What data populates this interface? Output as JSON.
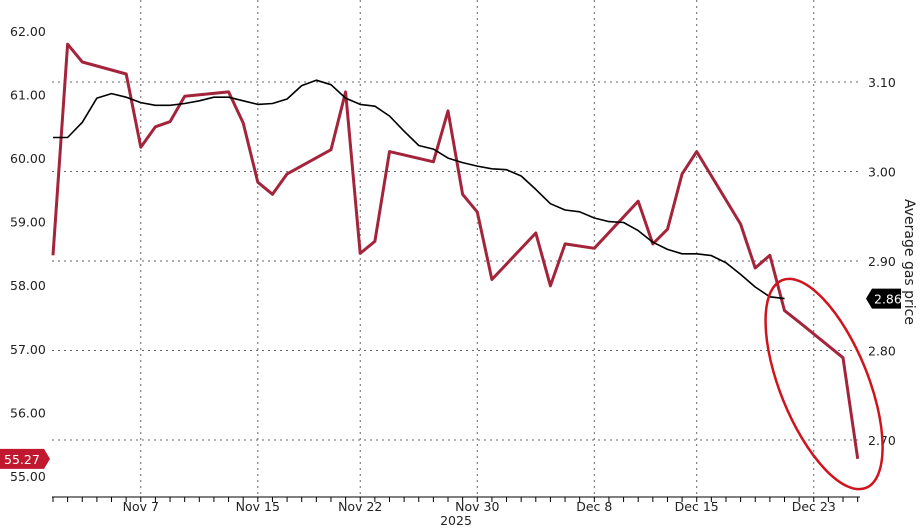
{
  "chart_data": {
    "type": "line",
    "title": "",
    "xlabel": "2025",
    "x_tick_labels": [
      "Nov 7",
      "Nov 15",
      "Nov 22",
      "Nov 30",
      "Dec 8",
      "Dec 15",
      "Dec 23"
    ],
    "x_tick_dates": [
      "2025-11-07",
      "2025-11-15",
      "2025-11-22",
      "2025-11-30",
      "2025-12-08",
      "2025-12-15",
      "2025-12-23"
    ],
    "xlim": [
      "2025-11-01",
      "2025-12-26"
    ],
    "left_axis": {
      "label": "",
      "ylim": [
        55,
        62
      ],
      "ticks": [
        "55.00",
        "56.00",
        "57.00",
        "58.00",
        "59.00",
        "60.00",
        "61.00",
        "62.00"
      ]
    },
    "right_axis": {
      "label": "Average gas price",
      "ylim": [
        2.65,
        3.15
      ],
      "ticks": [
        "2.70",
        "2.80",
        "2.90",
        "3.00",
        "3.10"
      ]
    },
    "grid": true,
    "series": [
      {
        "axis": "left",
        "color": "#a3243b",
        "last_value_label": "55.27",
        "points": [
          [
            "2025-11-01",
            58.47
          ],
          [
            "2025-11-02",
            61.79
          ],
          [
            "2025-11-03",
            61.51
          ],
          [
            "2025-11-06",
            61.32
          ],
          [
            "2025-11-07",
            60.17
          ],
          [
            "2025-11-08",
            60.49
          ],
          [
            "2025-11-09",
            60.57
          ],
          [
            "2025-11-10",
            60.97
          ],
          [
            "2025-11-13",
            61.04
          ],
          [
            "2025-11-14",
            60.55
          ],
          [
            "2025-11-15",
            59.62
          ],
          [
            "2025-11-16",
            59.43
          ],
          [
            "2025-11-17",
            59.75
          ],
          [
            "2025-11-20",
            60.13
          ],
          [
            "2025-11-21",
            61.04
          ],
          [
            "2025-11-22",
            58.5
          ],
          [
            "2025-11-23",
            58.69
          ],
          [
            "2025-11-24",
            60.1
          ],
          [
            "2025-11-27",
            59.94
          ],
          [
            "2025-11-28",
            60.74
          ],
          [
            "2025-11-29",
            59.43
          ],
          [
            "2025-11-30",
            59.15
          ],
          [
            "2025-12-01",
            58.09
          ],
          [
            "2025-12-04",
            58.82
          ],
          [
            "2025-12-05",
            57.99
          ],
          [
            "2025-12-06",
            58.65
          ],
          [
            "2025-12-08",
            58.58
          ],
          [
            "2025-12-11",
            59.32
          ],
          [
            "2025-12-12",
            58.65
          ],
          [
            "2025-12-13",
            58.88
          ],
          [
            "2025-12-14",
            59.75
          ],
          [
            "2025-12-15",
            60.1
          ],
          [
            "2025-12-18",
            58.96
          ],
          [
            "2025-12-19",
            58.27
          ],
          [
            "2025-12-20",
            58.47
          ],
          [
            "2025-12-21",
            57.6
          ],
          [
            "2025-12-22",
            57.42
          ],
          [
            "2025-12-25",
            56.86
          ],
          [
            "2025-12-26",
            55.27
          ]
        ]
      },
      {
        "axis": "right",
        "color": "#000000",
        "last_value_label": "2.86",
        "points": [
          [
            "2025-11-01",
            3.038
          ],
          [
            "2025-11-02",
            3.038
          ],
          [
            "2025-11-03",
            3.055
          ],
          [
            "2025-11-04",
            3.082
          ],
          [
            "2025-11-05",
            3.087
          ],
          [
            "2025-11-06",
            3.083
          ],
          [
            "2025-11-07",
            3.077
          ],
          [
            "2025-11-08",
            3.074
          ],
          [
            "2025-11-09",
            3.074
          ],
          [
            "2025-11-10",
            3.076
          ],
          [
            "2025-11-11",
            3.079
          ],
          [
            "2025-11-12",
            3.083
          ],
          [
            "2025-11-13",
            3.083
          ],
          [
            "2025-11-14",
            3.079
          ],
          [
            "2025-11-15",
            3.075
          ],
          [
            "2025-11-16",
            3.076
          ],
          [
            "2025-11-17",
            3.081
          ],
          [
            "2025-11-18",
            3.096
          ],
          [
            "2025-11-19",
            3.102
          ],
          [
            "2025-11-20",
            3.097
          ],
          [
            "2025-11-21",
            3.082
          ],
          [
            "2025-11-22",
            3.075
          ],
          [
            "2025-11-23",
            3.073
          ],
          [
            "2025-11-24",
            3.062
          ],
          [
            "2025-11-25",
            3.045
          ],
          [
            "2025-11-26",
            3.029
          ],
          [
            "2025-11-27",
            3.025
          ],
          [
            "2025-11-28",
            3.015
          ],
          [
            "2025-11-29",
            3.01
          ],
          [
            "2025-11-30",
            3.006
          ],
          [
            "2025-12-01",
            3.003
          ],
          [
            "2025-12-02",
            3.002
          ],
          [
            "2025-12-03",
            2.995
          ],
          [
            "2025-12-04",
            2.98
          ],
          [
            "2025-12-05",
            2.964
          ],
          [
            "2025-12-06",
            2.957
          ],
          [
            "2025-12-07",
            2.955
          ],
          [
            "2025-12-08",
            2.948
          ],
          [
            "2025-12-09",
            2.944
          ],
          [
            "2025-12-10",
            2.943
          ],
          [
            "2025-12-11",
            2.934
          ],
          [
            "2025-12-12",
            2.921
          ],
          [
            "2025-12-13",
            2.913
          ],
          [
            "2025-12-14",
            2.908
          ],
          [
            "2025-12-15",
            2.908
          ],
          [
            "2025-12-16",
            2.906
          ],
          [
            "2025-12-17",
            2.898
          ],
          [
            "2025-12-18",
            2.885
          ],
          [
            "2025-12-19",
            2.871
          ],
          [
            "2025-12-20",
            2.86
          ],
          [
            "2025-12-21",
            2.858
          ]
        ]
      }
    ],
    "annotation": {
      "type": "ellipse",
      "color": "#d0141e",
      "around": [
        "2025-12-21",
        "2025-12-26"
      ]
    }
  }
}
